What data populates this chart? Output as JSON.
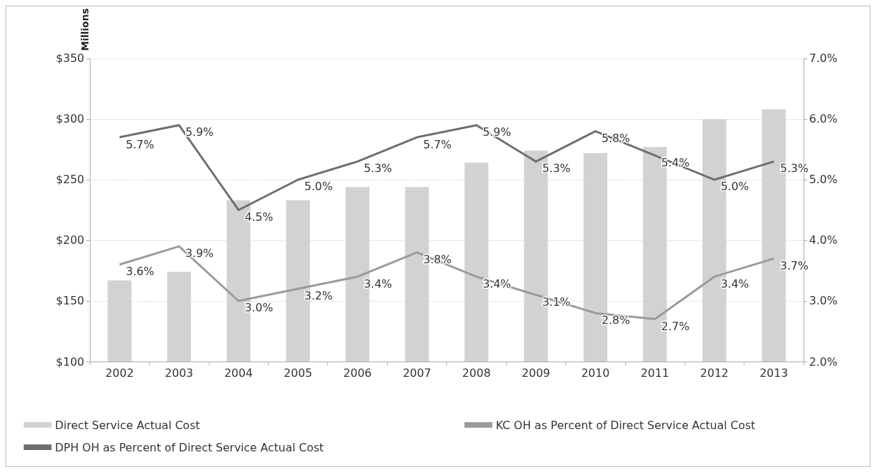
{
  "chart_data": {
    "type": "bar",
    "ylabel": "Millions",
    "categories": [
      "2002",
      "2003",
      "2004",
      "2005",
      "2006",
      "2007",
      "2008",
      "2009",
      "2010",
      "2011",
      "2012",
      "2013"
    ],
    "series": [
      {
        "name": "Direct Service Actual Cost",
        "color": "#d2d2d2",
        "values": [
          167,
          174,
          233,
          233,
          244,
          244,
          264,
          274,
          272,
          277,
          300,
          308
        ]
      },
      {
        "name": "KC OH as Percent of Direct Service Actual Cost",
        "type": "line",
        "axis": "y2",
        "color": "#9a9a9a",
        "values": [
          3.6,
          3.9,
          3.0,
          3.2,
          3.4,
          3.8,
          3.4,
          3.1,
          2.8,
          2.7,
          3.4,
          3.7
        ],
        "value_labels": [
          "3.6%",
          "3.9%",
          "3.0%",
          "3.2%",
          "3.4%",
          "3.8%",
          "3.4%",
          "3.1%",
          "2.8%",
          "2.7%",
          "3.4%",
          "3.7%"
        ]
      },
      {
        "name": "DPH OH as Percent of Direct Service Actual Cost",
        "type": "line",
        "axis": "y2",
        "color": "#6e6e6e",
        "values": [
          5.7,
          5.9,
          4.5,
          5.0,
          5.3,
          5.7,
          5.9,
          5.3,
          5.8,
          5.4,
          5.0,
          5.3
        ],
        "value_labels": [
          "5.7%",
          "5.9%",
          "4.5%",
          "5.0%",
          "5.3%",
          "5.7%",
          "5.9%",
          "5.3%",
          "5.8%",
          "5.4%",
          "5.0%",
          "5.3%"
        ]
      }
    ],
    "ylim": [
      100,
      350
    ],
    "yticks": [
      {
        "value": 100,
        "label": "$100"
      },
      {
        "value": 150,
        "label": "$150"
      },
      {
        "value": 200,
        "label": "$200"
      },
      {
        "value": 250,
        "label": "$250"
      },
      {
        "value": 300,
        "label": "$300"
      },
      {
        "value": 350,
        "label": "$350"
      }
    ],
    "y2lim": [
      2,
      7
    ],
    "y2ticks": [
      {
        "value": 2,
        "label": "2.0%"
      },
      {
        "value": 3,
        "label": "3.0%"
      },
      {
        "value": 4,
        "label": "4.0%"
      },
      {
        "value": 5,
        "label": "5.0%"
      },
      {
        "value": 6,
        "label": "6.0%"
      },
      {
        "value": 7,
        "label": "7.0%"
      }
    ],
    "grid": "y",
    "legend": "bottom",
    "marker": "none",
    "line_style": "solid"
  }
}
